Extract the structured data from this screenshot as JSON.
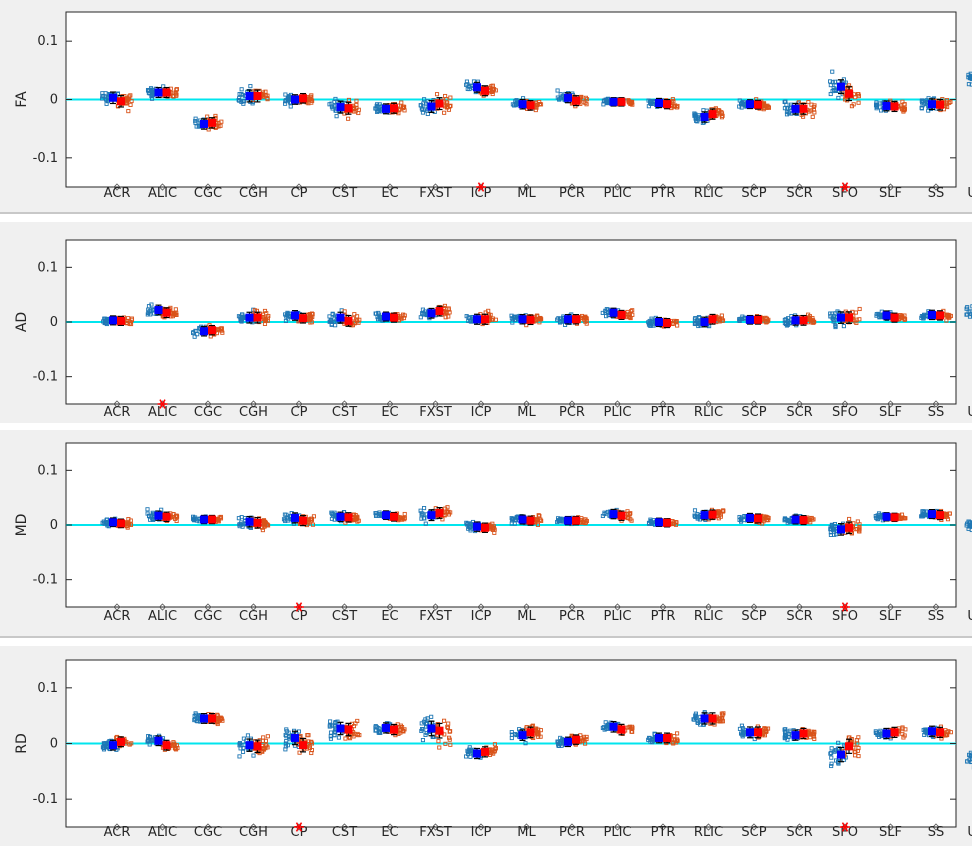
{
  "colors": {
    "group1": "#1f77b4",
    "group2": "#d95319",
    "mean1": "#0000ff",
    "mean2": "#ff0000",
    "zero_line": "#00e5ee",
    "significance": "#ff0000",
    "axes": "#262626"
  },
  "chart_data": [
    {
      "type": "scatter",
      "ylabel": "FA",
      "ylim": [
        -0.15,
        0.15
      ],
      "yticks": [
        "0.1",
        "0",
        "-0.1"
      ],
      "ytick_values": [
        0.1,
        0,
        -0.1
      ],
      "categories": [
        "ACR",
        "ALIC",
        "CGC",
        "CGH",
        "CP",
        "CST",
        "EC",
        "FXST",
        "ICP",
        "ML",
        "PCR",
        "PLIC",
        "PTR",
        "RLIC",
        "SCP",
        "SCR",
        "SFO",
        "SLF",
        "SS",
        "UNC"
      ],
      "series": [
        {
          "values": [
            0.003,
            0.012,
            -0.042,
            0.006,
            0.0,
            -0.013,
            -0.016,
            -0.012,
            0.021,
            -0.008,
            0.003,
            -0.004,
            -0.006,
            -0.03,
            -0.008,
            -0.016,
            0.022,
            -0.011,
            -0.008,
            0.037
          ]
        },
        {
          "values": [
            -0.003,
            0.012,
            -0.04,
            0.006,
            0.002,
            -0.015,
            -0.015,
            -0.007,
            0.015,
            -0.01,
            -0.002,
            -0.004,
            -0.008,
            -0.025,
            -0.009,
            -0.016,
            0.01,
            -0.012,
            -0.009,
            0.04
          ]
        }
      ],
      "spread": [
        0.028,
        0.02,
        0.022,
        0.03,
        0.018,
        0.03,
        0.02,
        0.03,
        0.02,
        0.018,
        0.02,
        0.012,
        0.016,
        0.022,
        0.014,
        0.024,
        0.04,
        0.02,
        0.024,
        0.034
      ],
      "significant": [
        "ICP",
        "SFO"
      ]
    },
    {
      "type": "scatter",
      "ylabel": "AD",
      "ylim": [
        -0.15,
        0.15
      ],
      "yticks": [
        "0.1",
        "0",
        "-0.1"
      ],
      "ytick_values": [
        0.1,
        0,
        -0.1
      ],
      "categories": [
        "ACR",
        "ALIC",
        "CGC",
        "CGH",
        "CP",
        "CST",
        "EC",
        "FXST",
        "ICP",
        "ML",
        "PCR",
        "PLIC",
        "PTR",
        "RLIC",
        "SCP",
        "SCR",
        "SFO",
        "SLF",
        "SS",
        "UNC"
      ],
      "series": [
        {
          "values": [
            0.003,
            0.022,
            -0.017,
            0.008,
            0.012,
            0.008,
            0.01,
            0.016,
            0.005,
            0.005,
            0.005,
            0.017,
            0.0,
            0.0,
            0.004,
            0.003,
            0.008,
            0.012,
            0.013,
            0.023
          ]
        },
        {
          "values": [
            0.002,
            0.017,
            -0.015,
            0.008,
            0.007,
            0.002,
            0.008,
            0.02,
            0.005,
            0.004,
            0.005,
            0.013,
            -0.002,
            0.005,
            0.004,
            0.003,
            0.008,
            0.008,
            0.012,
            0.023
          ]
        }
      ],
      "spread": [
        0.016,
        0.02,
        0.018,
        0.026,
        0.02,
        0.026,
        0.016,
        0.02,
        0.022,
        0.018,
        0.018,
        0.016,
        0.016,
        0.02,
        0.014,
        0.02,
        0.03,
        0.016,
        0.018,
        0.024
      ],
      "significant": [
        "ALIC"
      ]
    },
    {
      "type": "scatter",
      "ylabel": "MD",
      "ylim": [
        -0.15,
        0.15
      ],
      "yticks": [
        "0.1",
        "0",
        "-0.1"
      ],
      "ytick_values": [
        0.1,
        0,
        -0.1
      ],
      "categories": [
        "ACR",
        "ALIC",
        "CGC",
        "CGH",
        "CP",
        "CST",
        "EC",
        "FXST",
        "ICP",
        "ML",
        "PCR",
        "PLIC",
        "PTR",
        "RLIC",
        "SCP",
        "SCR",
        "SFO",
        "SLF",
        "SS",
        "UNC"
      ],
      "series": [
        {
          "values": [
            0.005,
            0.017,
            0.01,
            0.006,
            0.013,
            0.015,
            0.018,
            0.018,
            -0.003,
            0.01,
            0.008,
            0.02,
            0.005,
            0.018,
            0.013,
            0.01,
            -0.008,
            0.015,
            0.02,
            0.0
          ]
        },
        {
          "values": [
            0.003,
            0.015,
            0.01,
            0.004,
            0.008,
            0.014,
            0.015,
            0.022,
            -0.005,
            0.008,
            0.008,
            0.017,
            0.004,
            0.019,
            0.012,
            0.009,
            -0.005,
            0.014,
            0.018,
            0.0
          ]
        }
      ],
      "spread": [
        0.014,
        0.018,
        0.012,
        0.024,
        0.022,
        0.018,
        0.014,
        0.026,
        0.018,
        0.016,
        0.012,
        0.018,
        0.012,
        0.018,
        0.016,
        0.016,
        0.03,
        0.012,
        0.016,
        0.02
      ],
      "significant": [
        "CP",
        "SFO"
      ]
    },
    {
      "type": "scatter",
      "ylabel": "RD",
      "ylim": [
        -0.15,
        0.15
      ],
      "yticks": [
        "0.1",
        "0",
        "-0.1"
      ],
      "ytick_values": [
        0.1,
        0,
        -0.1
      ],
      "categories": [
        "ACR",
        "ALIC",
        "CGC",
        "CGH",
        "CP",
        "CST",
        "EC",
        "FXST",
        "ICP",
        "ML",
        "PCR",
        "PLIC",
        "PTR",
        "RLIC",
        "SCP",
        "SCR",
        "SFO",
        "SLF",
        "SS",
        "UNC"
      ],
      "series": [
        {
          "values": [
            -0.003,
            0.005,
            0.045,
            -0.003,
            0.01,
            0.027,
            0.028,
            0.027,
            -0.018,
            0.015,
            0.003,
            0.03,
            0.01,
            0.045,
            0.02,
            0.015,
            -0.02,
            0.018,
            0.022,
            -0.025
          ]
        },
        {
          "values": [
            0.003,
            -0.003,
            0.045,
            -0.005,
            -0.003,
            0.025,
            0.025,
            0.023,
            -0.015,
            0.02,
            0.007,
            0.025,
            0.01,
            0.045,
            0.02,
            0.018,
            -0.005,
            0.02,
            0.02,
            -0.03
          ]
        }
      ],
      "spread": [
        0.02,
        0.02,
        0.02,
        0.034,
        0.04,
        0.034,
        0.022,
        0.046,
        0.022,
        0.024,
        0.018,
        0.024,
        0.02,
        0.028,
        0.026,
        0.022,
        0.044,
        0.022,
        0.022,
        0.032
      ],
      "significant": [
        "CP",
        "SFO"
      ]
    }
  ]
}
